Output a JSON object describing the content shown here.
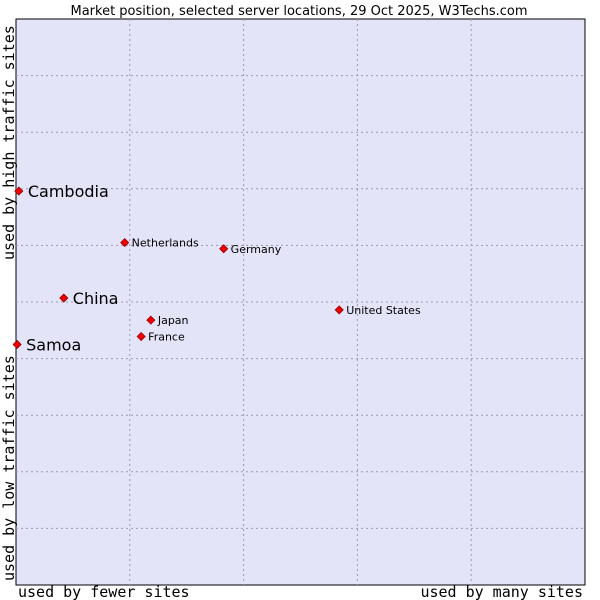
{
  "chart_data": {
    "type": "scatter",
    "title": "Market position, selected server locations, 29 Oct 2025, W3Techs.com",
    "xlabel_low": "used by fewer sites",
    "xlabel_high": "used by many sites",
    "ylabel_low": "used by low traffic sites",
    "ylabel_high": "used by high traffic sites",
    "xlim": [
      0,
      100
    ],
    "ylim": [
      0,
      100
    ],
    "grid": true,
    "points": [
      {
        "name": "Cambodia",
        "x": 0.5,
        "y": 69.6,
        "highlight": true
      },
      {
        "name": "China",
        "x": 8.4,
        "y": 50.7,
        "highlight": true
      },
      {
        "name": "Samoa",
        "x": 0.2,
        "y": 42.5,
        "highlight": true
      },
      {
        "name": "Netherlands",
        "x": 19.1,
        "y": 60.5,
        "highlight": false
      },
      {
        "name": "Germany",
        "x": 36.5,
        "y": 59.4,
        "highlight": false
      },
      {
        "name": "Japan",
        "x": 23.7,
        "y": 46.8,
        "highlight": false
      },
      {
        "name": "France",
        "x": 22.0,
        "y": 43.9,
        "highlight": false
      },
      {
        "name": "United States",
        "x": 56.8,
        "y": 48.6,
        "highlight": false
      }
    ]
  }
}
